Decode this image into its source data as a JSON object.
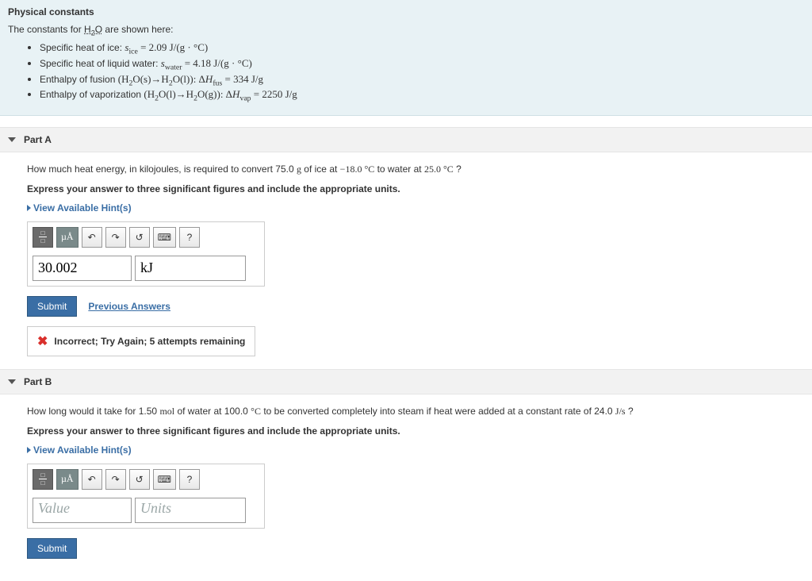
{
  "constants": {
    "title": "Physical constants",
    "intro_pre": "The constants for ",
    "intro_formula": "H₂O",
    "intro_post": " are shown here:",
    "items": [
      {
        "label": "Specific heat of ice: ",
        "expr": "s_ice = 2.09 J/(g · °C)"
      },
      {
        "label": "Specific heat of liquid water: ",
        "expr": "s_water = 4.18 J/(g · °C)"
      },
      {
        "label": "Enthalpy of fusion (H₂O(s)→H₂O(l)): ",
        "expr": "ΔH_fus = 334 J/g"
      },
      {
        "label": "Enthalpy of vaporization (H₂O(l)→H₂O(g)): ",
        "expr": "ΔH_vap = 2250 J/g"
      }
    ]
  },
  "partA": {
    "title": "Part A",
    "question": "How much heat energy, in kilojoules, is required to convert 75.0 g of ice at −18.0 °C to water at  25.0 °C ?",
    "instruction": "Express your answer to three significant figures and include the appropriate units.",
    "hints_label": "View Available Hint(s)",
    "toolbar": {
      "units_symbol": "µÅ",
      "help": "?"
    },
    "value": "30.002",
    "units": "kJ",
    "submit": "Submit",
    "previous": "Previous Answers",
    "feedback": "Incorrect; Try Again; 5 attempts remaining"
  },
  "partB": {
    "title": "Part B",
    "question": "How long would it take for 1.50 mol of water at 100.0 °C to be converted completely into steam if heat were added at a constant rate of 24.0 J/s ?",
    "instruction": "Express your answer to three significant figures and include the appropriate units.",
    "hints_label": "View Available Hint(s)",
    "toolbar": {
      "units_symbol": "µÅ",
      "help": "?"
    },
    "value_placeholder": "Value",
    "units_placeholder": "Units",
    "submit": "Submit"
  }
}
